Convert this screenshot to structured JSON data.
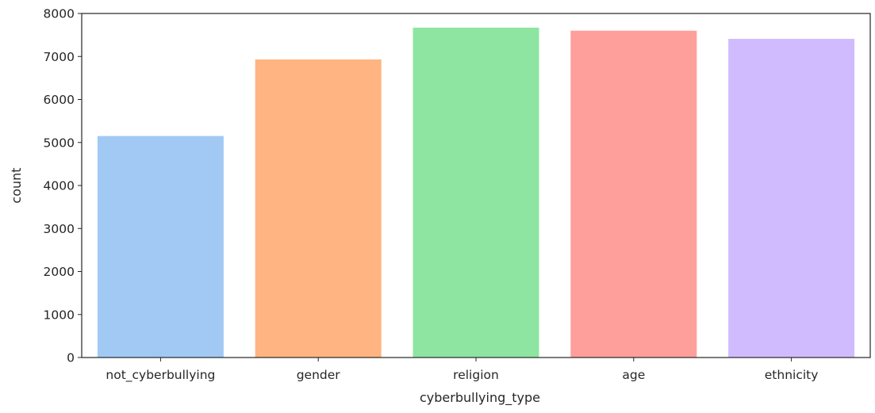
{
  "chart_data": {
    "type": "bar",
    "title": "",
    "xlabel": "cyberbullying_type",
    "ylabel": "count",
    "categories": [
      "not_cyberbullying",
      "gender",
      "religion",
      "age",
      "ethnicity"
    ],
    "values": [
      5150,
      6930,
      7670,
      7600,
      7410
    ],
    "colors": [
      "#a1c9f4",
      "#ffb482",
      "#8de5a1",
      "#ff9f9b",
      "#d0bbff"
    ],
    "ylim": [
      0,
      8000
    ],
    "yticks": [
      0,
      1000,
      2000,
      3000,
      4000,
      5000,
      6000,
      7000,
      8000
    ],
    "ytick_labels": [
      "0",
      "1000",
      "2000",
      "3000",
      "4000",
      "5000",
      "6000",
      "7000",
      "8000"
    ],
    "grid": false,
    "legend": "none"
  }
}
